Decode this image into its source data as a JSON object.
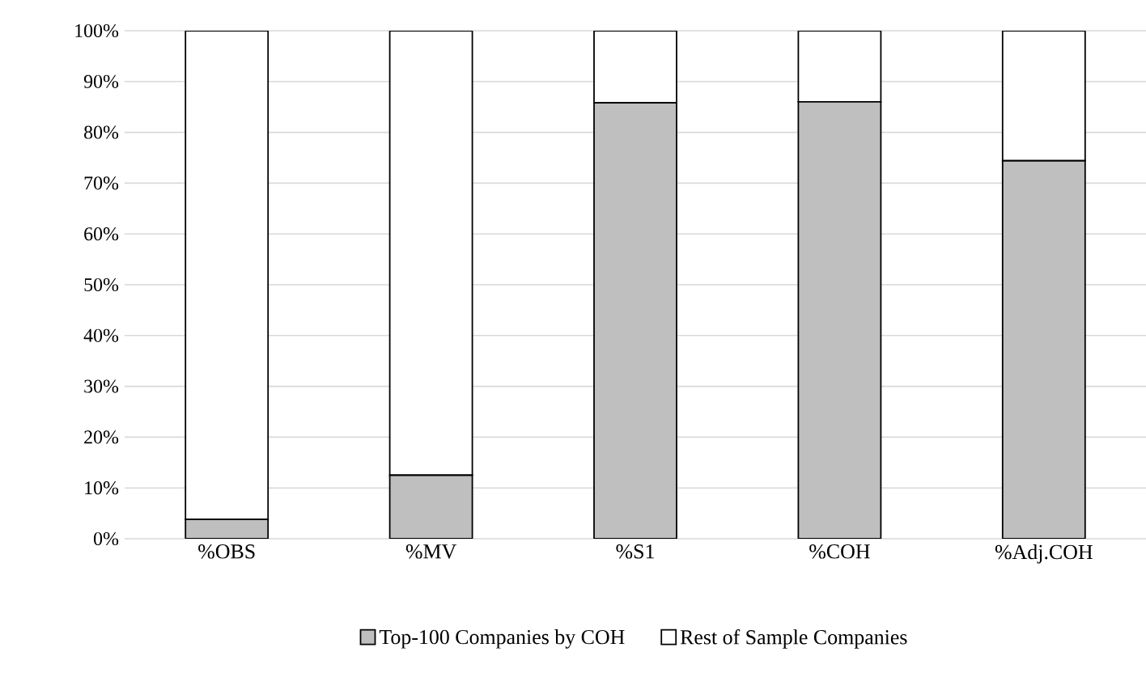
{
  "chart_data": {
    "type": "bar",
    "stacked": true,
    "categories": [
      "%OBS",
      "%MV",
      "%S1",
      "%COH",
      "%Adj.COH"
    ],
    "series": [
      {
        "name": "Top-100 Companies by COH",
        "color": "#bfbfbf",
        "values": [
          3.8,
          12.5,
          85.8,
          86,
          74.4
        ]
      },
      {
        "name": "Rest of Sample Companies",
        "color": "#ffffff",
        "values": [
          96.2,
          87.5,
          14.2,
          14,
          25.6
        ]
      }
    ],
    "ylim": [
      0,
      100
    ],
    "yticks": [
      {
        "value": 0,
        "label": "0%"
      },
      {
        "value": 10,
        "label": "10%"
      },
      {
        "value": 20,
        "label": "20%"
      },
      {
        "value": 30,
        "label": "30%"
      },
      {
        "value": 40,
        "label": "40%"
      },
      {
        "value": 50,
        "label": "50%"
      },
      {
        "value": 60,
        "label": "60%"
      },
      {
        "value": 70,
        "label": "70%"
      },
      {
        "value": 80,
        "label": "80%"
      },
      {
        "value": 90,
        "label": "90%"
      },
      {
        "value": 100,
        "label": "100%"
      }
    ],
    "grid": "y",
    "legend": "bottom"
  }
}
